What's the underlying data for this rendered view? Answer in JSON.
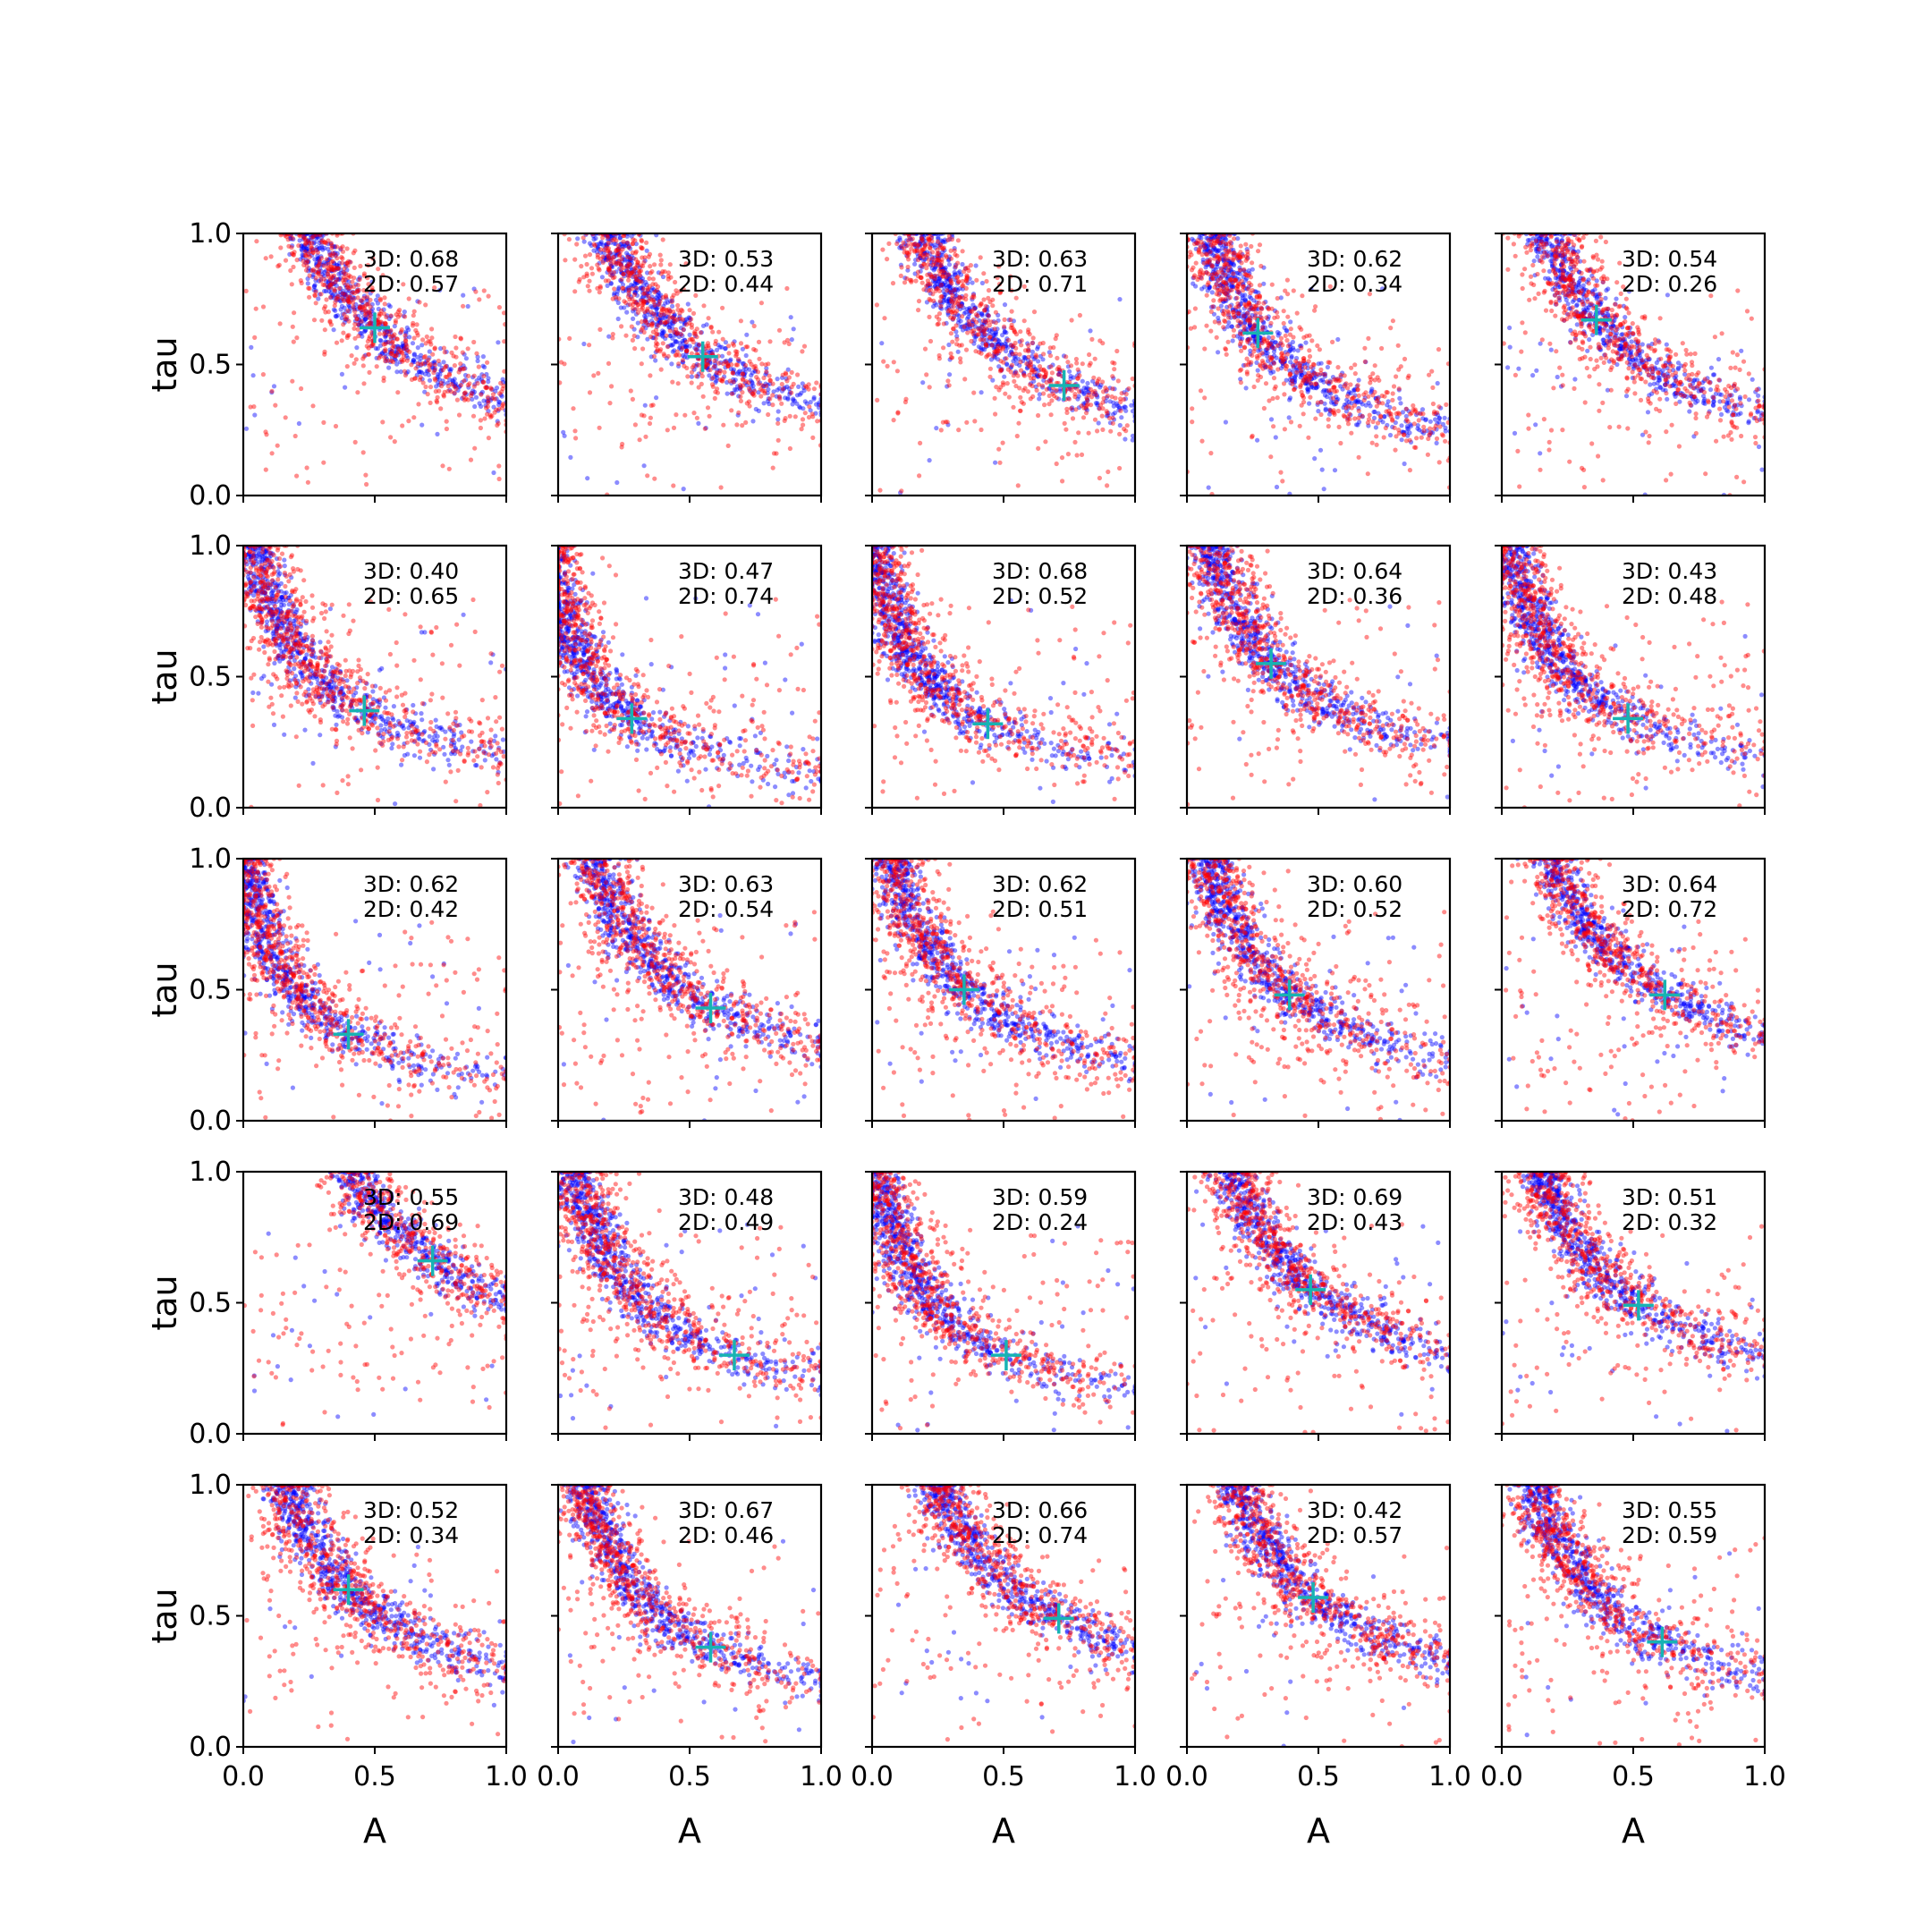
{
  "figure": {
    "xlabel": "A",
    "ylabel": "tau"
  },
  "colors": {
    "series_3d": "#0000ff",
    "series_2d": "#ff0000",
    "marker": "#17b3b3"
  },
  "chart_data": [
    {
      "type": "scatter",
      "xlim": [
        0,
        1
      ],
      "ylim": [
        0,
        1
      ],
      "marker": [
        0.5,
        0.64
      ],
      "annotation": [
        "3D: 0.68",
        "2D: 0.57"
      ]
    },
    {
      "type": "scatter",
      "xlim": [
        0,
        1
      ],
      "ylim": [
        0,
        1
      ],
      "marker": [
        0.55,
        0.53
      ],
      "annotation": [
        "3D: 0.53",
        "2D: 0.44"
      ]
    },
    {
      "type": "scatter",
      "xlim": [
        0,
        1
      ],
      "ylim": [
        0,
        1
      ],
      "marker": [
        0.73,
        0.42
      ],
      "annotation": [
        "3D: 0.63",
        "2D: 0.71"
      ]
    },
    {
      "type": "scatter",
      "xlim": [
        0,
        1
      ],
      "ylim": [
        0,
        1
      ],
      "marker": [
        0.27,
        0.62
      ],
      "annotation": [
        "3D: 0.62",
        "2D: 0.34"
      ]
    },
    {
      "type": "scatter",
      "xlim": [
        0,
        1
      ],
      "ylim": [
        0,
        1
      ],
      "marker": [
        0.36,
        0.67
      ],
      "annotation": [
        "3D: 0.54",
        "2D: 0.26"
      ]
    },
    {
      "type": "scatter",
      "xlim": [
        0,
        1
      ],
      "ylim": [
        0,
        1
      ],
      "marker": [
        0.46,
        0.37
      ],
      "annotation": [
        "3D: 0.40",
        "2D: 0.65"
      ]
    },
    {
      "type": "scatter",
      "xlim": [
        0,
        1
      ],
      "ylim": [
        0,
        1
      ],
      "marker": [
        0.28,
        0.34
      ],
      "annotation": [
        "3D: 0.47",
        "2D: 0.74"
      ]
    },
    {
      "type": "scatter",
      "xlim": [
        0,
        1
      ],
      "ylim": [
        0,
        1
      ],
      "marker": [
        0.44,
        0.32
      ],
      "annotation": [
        "3D: 0.68",
        "2D: 0.52"
      ]
    },
    {
      "type": "scatter",
      "xlim": [
        0,
        1
      ],
      "ylim": [
        0,
        1
      ],
      "marker": [
        0.32,
        0.55
      ],
      "annotation": [
        "3D: 0.64",
        "2D: 0.36"
      ]
    },
    {
      "type": "scatter",
      "xlim": [
        0,
        1
      ],
      "ylim": [
        0,
        1
      ],
      "marker": [
        0.48,
        0.34
      ],
      "annotation": [
        "3D: 0.43",
        "2D: 0.48"
      ]
    },
    {
      "type": "scatter",
      "xlim": [
        0,
        1
      ],
      "ylim": [
        0,
        1
      ],
      "marker": [
        0.4,
        0.33
      ],
      "annotation": [
        "3D: 0.62",
        "2D: 0.42"
      ]
    },
    {
      "type": "scatter",
      "xlim": [
        0,
        1
      ],
      "ylim": [
        0,
        1
      ],
      "marker": [
        0.58,
        0.43
      ],
      "annotation": [
        "3D: 0.63",
        "2D: 0.54"
      ]
    },
    {
      "type": "scatter",
      "xlim": [
        0,
        1
      ],
      "ylim": [
        0,
        1
      ],
      "marker": [
        0.35,
        0.5
      ],
      "annotation": [
        "3D: 0.62",
        "2D: 0.51"
      ]
    },
    {
      "type": "scatter",
      "xlim": [
        0,
        1
      ],
      "ylim": [
        0,
        1
      ],
      "marker": [
        0.39,
        0.48
      ],
      "annotation": [
        "3D: 0.60",
        "2D: 0.52"
      ]
    },
    {
      "type": "scatter",
      "xlim": [
        0,
        1
      ],
      "ylim": [
        0,
        1
      ],
      "marker": [
        0.62,
        0.48
      ],
      "annotation": [
        "3D: 0.64",
        "2D: 0.72"
      ]
    },
    {
      "type": "scatter",
      "xlim": [
        0,
        1
      ],
      "ylim": [
        0,
        1
      ],
      "marker": [
        0.72,
        0.66
      ],
      "annotation": [
        "3D: 0.55",
        "2D: 0.69"
      ]
    },
    {
      "type": "scatter",
      "xlim": [
        0,
        1
      ],
      "ylim": [
        0,
        1
      ],
      "marker": [
        0.67,
        0.3
      ],
      "annotation": [
        "3D: 0.48",
        "2D: 0.49"
      ]
    },
    {
      "type": "scatter",
      "xlim": [
        0,
        1
      ],
      "ylim": [
        0,
        1
      ],
      "marker": [
        0.51,
        0.3
      ],
      "annotation": [
        "3D: 0.59",
        "2D: 0.24"
      ]
    },
    {
      "type": "scatter",
      "xlim": [
        0,
        1
      ],
      "ylim": [
        0,
        1
      ],
      "marker": [
        0.47,
        0.55
      ],
      "annotation": [
        "3D: 0.69",
        "2D: 0.43"
      ]
    },
    {
      "type": "scatter",
      "xlim": [
        0,
        1
      ],
      "ylim": [
        0,
        1
      ],
      "marker": [
        0.52,
        0.49
      ],
      "annotation": [
        "3D: 0.51",
        "2D: 0.32"
      ]
    },
    {
      "type": "scatter",
      "xlim": [
        0,
        1
      ],
      "ylim": [
        0,
        1
      ],
      "marker": [
        0.4,
        0.6
      ],
      "annotation": [
        "3D: 0.52",
        "2D: 0.34"
      ]
    },
    {
      "type": "scatter",
      "xlim": [
        0,
        1
      ],
      "ylim": [
        0,
        1
      ],
      "marker": [
        0.58,
        0.38
      ],
      "annotation": [
        "3D: 0.67",
        "2D: 0.46"
      ]
    },
    {
      "type": "scatter",
      "xlim": [
        0,
        1
      ],
      "ylim": [
        0,
        1
      ],
      "marker": [
        0.71,
        0.49
      ],
      "annotation": [
        "3D: 0.66",
        "2D: 0.74"
      ]
    },
    {
      "type": "scatter",
      "xlim": [
        0,
        1
      ],
      "ylim": [
        0,
        1
      ],
      "marker": [
        0.48,
        0.57
      ],
      "annotation": [
        "3D: 0.42",
        "2D: 0.57"
      ]
    },
    {
      "type": "scatter",
      "xlim": [
        0,
        1
      ],
      "ylim": [
        0,
        1
      ],
      "marker": [
        0.61,
        0.4
      ],
      "annotation": [
        "3D: 0.55",
        "2D: 0.59"
      ]
    }
  ],
  "ticks": {
    "x": [
      "0.0",
      "0.5",
      "1.0"
    ],
    "y": [
      "0.0",
      "0.5",
      "1.0"
    ]
  }
}
